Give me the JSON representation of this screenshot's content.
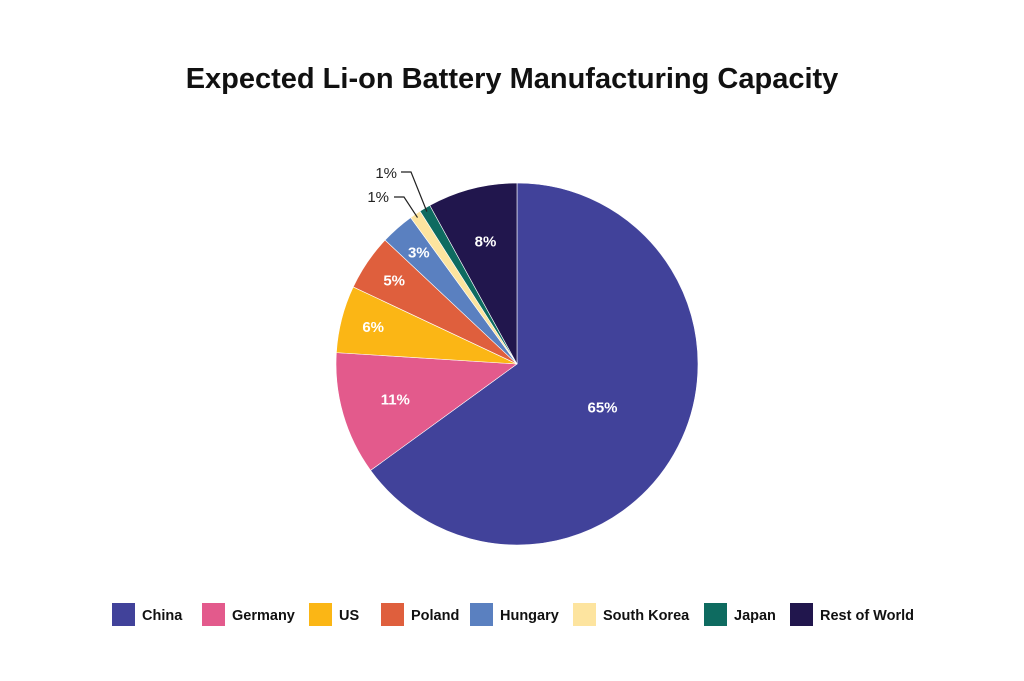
{
  "chart_data": {
    "type": "pie",
    "title": "Expected Li-on Battery Manufacturing Capacity",
    "slices": [
      {
        "name": "China",
        "value": 65,
        "label": "65%",
        "color": "#41429a"
      },
      {
        "name": "Germany",
        "value": 11,
        "label": "11%",
        "color": "#e35a8c"
      },
      {
        "name": "US",
        "value": 6,
        "label": "6%",
        "color": "#fbb615"
      },
      {
        "name": "Poland",
        "value": 5,
        "label": "5%",
        "color": "#df5f3d"
      },
      {
        "name": "Hungary",
        "value": 3,
        "label": "3%",
        "color": "#5a80c0"
      },
      {
        "name": "South Korea",
        "value": 1,
        "label": "1%",
        "color": "#fde49f"
      },
      {
        "name": "Japan",
        "value": 1,
        "label": "1%",
        "color": "#0e6b60"
      },
      {
        "name": "Rest of World",
        "value": 8,
        "label": "8%",
        "color": "#21164d"
      }
    ],
    "legend": [
      "China",
      "Germany",
      "US",
      "Poland",
      "Hungary",
      "South Korea",
      "Japan",
      "Rest of World"
    ],
    "legend_position": "bottom",
    "start": "top",
    "direction": "clockwise"
  }
}
